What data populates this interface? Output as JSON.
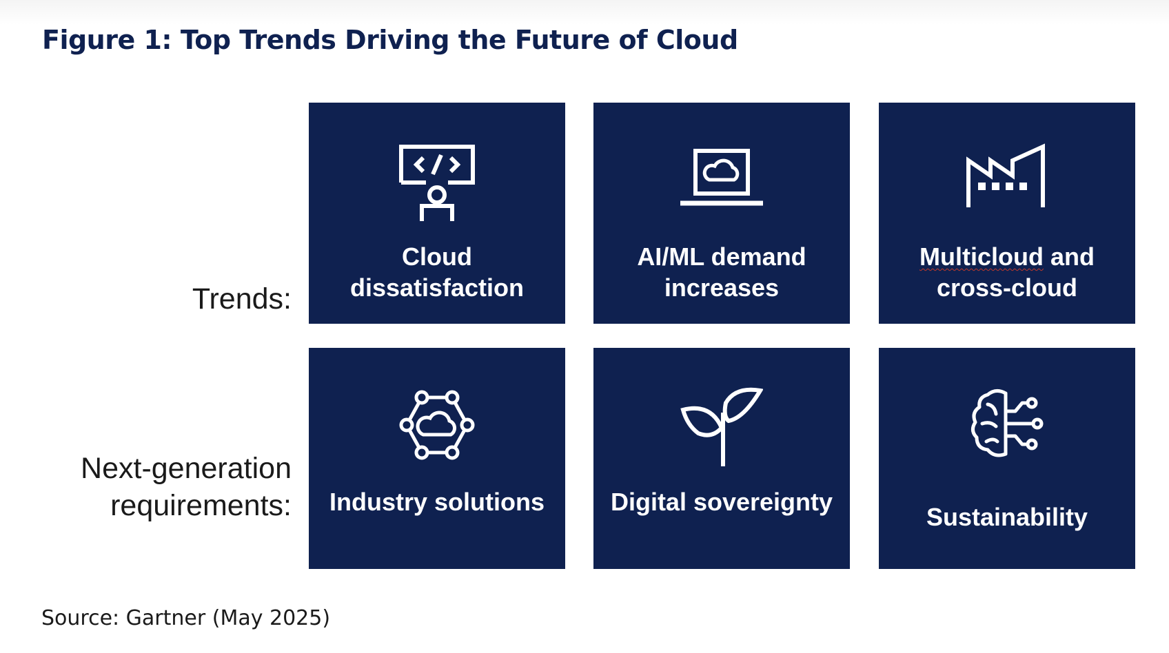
{
  "figure": {
    "title": "Figure 1: Top Trends Driving the Future of Cloud",
    "source": "Source: Gartner (May 2025)"
  },
  "rows": {
    "trends_label": "Trends:",
    "nextgen_label": "Next-generation requirements:"
  },
  "cards": [
    {
      "label": "Cloud dissatisfaction",
      "icon": "code-presenter-icon"
    },
    {
      "label": "AI/ML demand increases",
      "icon": "laptop-cloud-icon"
    },
    {
      "label_part1": "Multicloud",
      "label_part2": " and cross-cloud",
      "icon": "factory-icon"
    },
    {
      "label": "Industry solutions",
      "icon": "cloud-network-icon"
    },
    {
      "label": "Digital sovereignty",
      "icon": "sprout-icon"
    },
    {
      "label": "Sustainability",
      "icon": "brain-circuit-icon"
    }
  ],
  "colors": {
    "card_background": "#0f2150",
    "title_text": "#0f2150",
    "card_text": "#ffffff"
  }
}
